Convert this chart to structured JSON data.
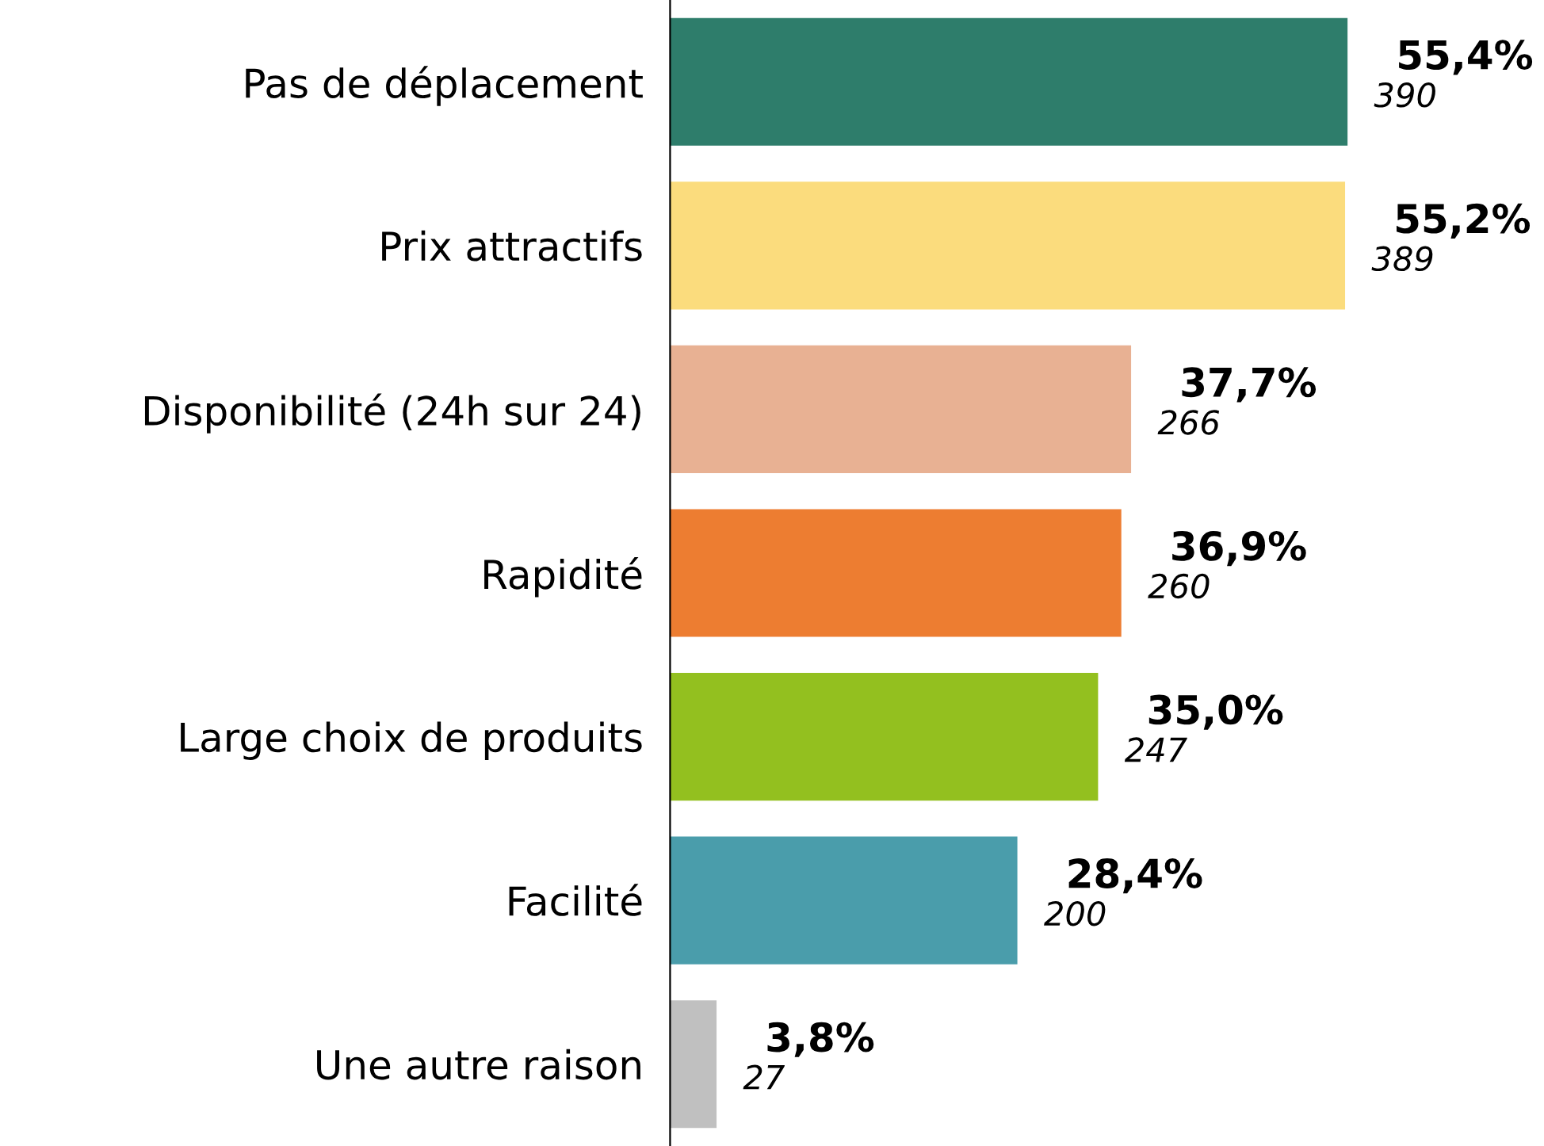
{
  "chart_data": {
    "type": "bar",
    "orientation": "horizontal",
    "categories": [
      "Pas de déplacement",
      "Prix attractifs",
      "Disponibilité (24h sur 24)",
      "Rapidité",
      "Large choix de produits",
      "Facilité",
      "Une autre raison"
    ],
    "values": [
      55.4,
      55.2,
      37.7,
      36.9,
      35.0,
      28.4,
      3.8
    ],
    "colors": [
      "#2e7d6b",
      "#fbdc7d",
      "#e8b193",
      "#ed7d31",
      "#93c01f",
      "#4a9dab",
      "#c0c0c0"
    ],
    "value_labels": [
      "55,4%\n390",
      "55,2%\n389",
      "37,7%\n266",
      "36,9%\n260",
      "35,0%\n247",
      "28,4%\n200",
      "3,8%\n27"
    ],
    "grid": false,
    "legend": false
  }
}
